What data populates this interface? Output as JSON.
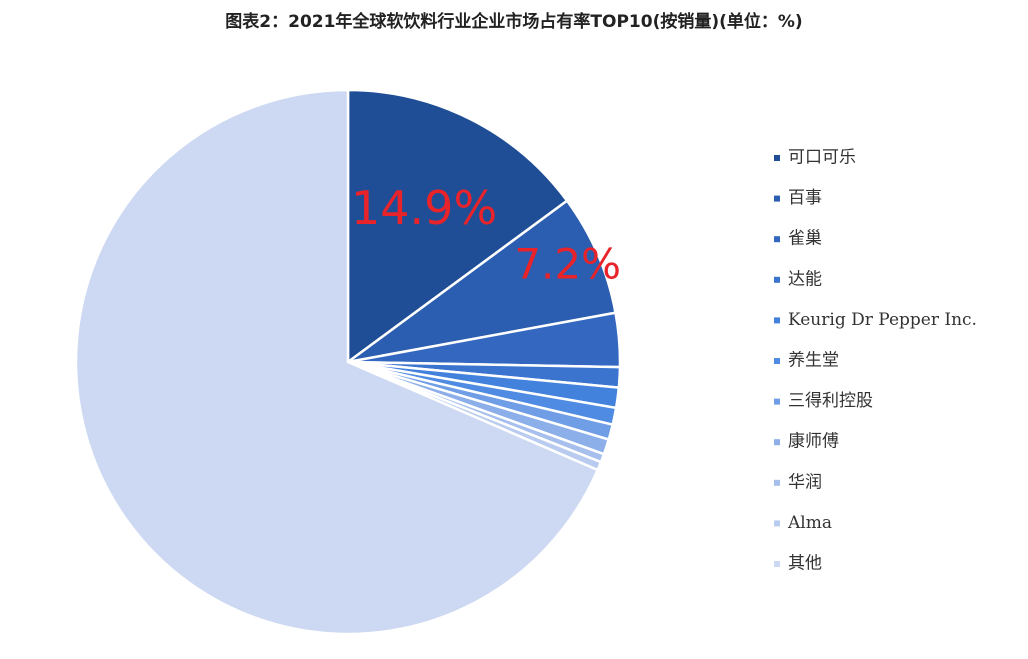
{
  "chart_data": {
    "type": "pie",
    "title": "图表2：2021年全球软饮料行业企业市场占有率TOP10(按销量)(单位：%)",
    "categories": [
      "可口可乐",
      "百事",
      "雀巢",
      "达能",
      "Keurig Dr Pepper Inc.",
      "养生堂",
      "三得利控股",
      "康师傅",
      "华润",
      "Alma",
      "其他"
    ],
    "values": [
      14.9,
      7.2,
      3.2,
      1.2,
      1.2,
      1.0,
      0.9,
      0.9,
      0.5,
      0.5,
      68.5
    ],
    "value_labels": [
      "14.9%",
      "7.2%",
      null,
      null,
      null,
      null,
      null,
      null,
      null,
      null,
      null
    ],
    "colors": [
      "#1f4e96",
      "#2b5db0",
      "#3468c0",
      "#3b74cf",
      "#4281dc",
      "#4f8be2",
      "#6f9de6",
      "#8caee9",
      "#a6bfed",
      "#b9cbef",
      "#cdd9f2"
    ],
    "legend": "right"
  }
}
